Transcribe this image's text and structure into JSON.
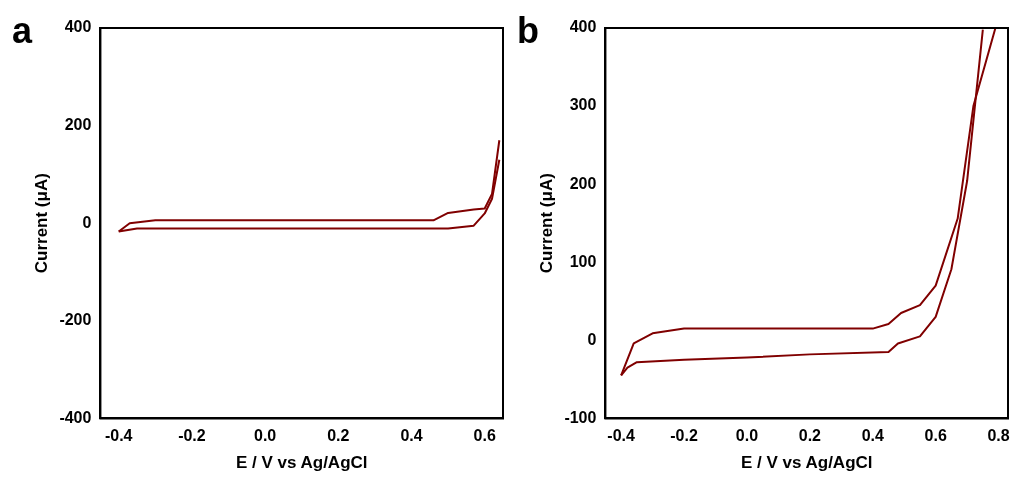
{
  "chart_data": [
    {
      "type": "line",
      "title": "a",
      "xlabel": "E / V vs Ag/AgCl",
      "ylabel": "Current (μA)",
      "xlim": [
        -0.45,
        0.65
      ],
      "xticks": [
        {
          "value": -0.4,
          "label": "-0.4"
        },
        {
          "value": -0.2,
          "label": "-0.2"
        },
        {
          "value": 0,
          "label": "0.0"
        },
        {
          "value": 0.2,
          "label": "0.2"
        },
        {
          "value": 0.4,
          "label": "0.4"
        },
        {
          "value": 0.6,
          "label": "0.6"
        }
      ],
      "ylim": [
        -400,
        400
      ],
      "yticks": [
        -400,
        -200,
        0,
        200,
        400
      ],
      "grid": false,
      "legend": false,
      "marker": "none",
      "line_style": "solid",
      "series": [
        {
          "color": "#800000",
          "x": [
            -0.4,
            -0.35,
            -0.2,
            0,
            0.2,
            0.4,
            0.5,
            0.57,
            0.6,
            0.62,
            0.63,
            0.64
          ],
          "values": [
            -17,
            -11,
            -11,
            -11,
            -11,
            -11,
            -11,
            -5,
            20,
            50,
            90,
            130
          ]
        },
        {
          "color": "#800000",
          "x": [
            -0.4,
            -0.37,
            -0.3,
            -0.2,
            0,
            0.2,
            0.4,
            0.46,
            0.5,
            0.57,
            0.6,
            0.62,
            0.64
          ],
          "values": [
            -17,
            0,
            6,
            6,
            6,
            6,
            6,
            6,
            21,
            28,
            30,
            60,
            170
          ]
        }
      ]
    },
    {
      "type": "line",
      "title": "b",
      "xlabel": "E / V vs Ag/AgCl",
      "ylabel": "Current (μA)",
      "xlim": [
        -0.45,
        0.83
      ],
      "xticks": [
        {
          "value": -0.4,
          "label": "-0.4"
        },
        {
          "value": -0.2,
          "label": "-0.2"
        },
        {
          "value": 0,
          "label": "0.0"
        },
        {
          "value": 0.2,
          "label": "0.2"
        },
        {
          "value": 0.4,
          "label": "0.4"
        },
        {
          "value": 0.6,
          "label": "0.6"
        },
        {
          "value": 0.8,
          "label": "0.8"
        }
      ],
      "ylim": [
        -100,
        400
      ],
      "yticks": [
        -100,
        0,
        100,
        200,
        300,
        400
      ],
      "grid": false,
      "legend": false,
      "marker": "none",
      "line_style": "solid",
      "series": [
        {
          "color": "#800000",
          "x": [
            -0.4,
            -0.38,
            -0.35,
            -0.2,
            0,
            0.2,
            0.45,
            0.48,
            0.55,
            0.6,
            0.65,
            0.7,
            0.75
          ],
          "values": [
            -45,
            -35,
            -28,
            -25,
            -22,
            -18,
            -15,
            -4,
            5,
            30,
            91,
            204,
            398
          ]
        },
        {
          "color": "#800000",
          "x": [
            -0.4,
            -0.36,
            -0.3,
            -0.2,
            0,
            0.4,
            0.45,
            0.49,
            0.55,
            0.6,
            0.67,
            0.72,
            0.79
          ],
          "values": [
            -45,
            -4,
            9,
            15,
            15,
            15,
            21,
            35,
            45,
            70,
            156,
            300,
            400
          ]
        }
      ]
    }
  ]
}
